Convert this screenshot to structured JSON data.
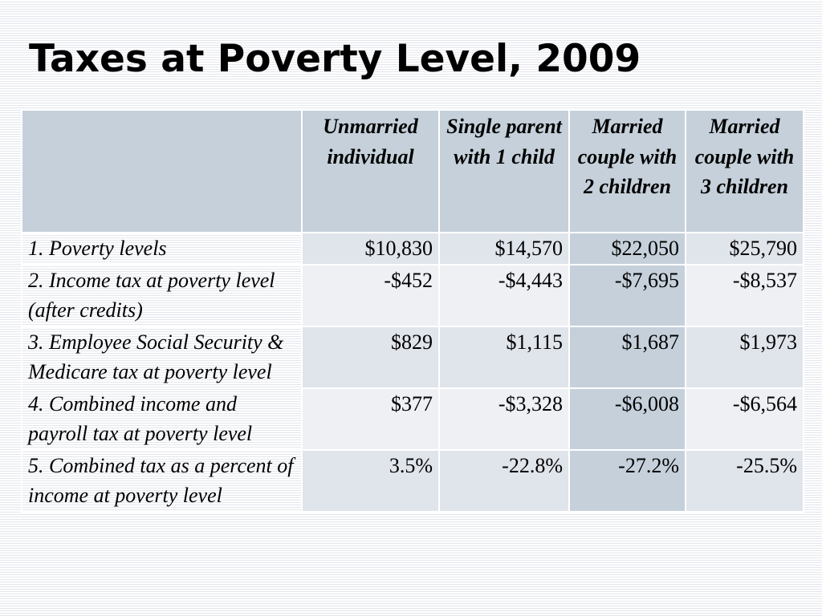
{
  "slide": {
    "title": "Taxes at Poverty Level, 2009"
  },
  "table": {
    "headers": [
      "",
      "Unmarried individual",
      "Single parent with 1 child",
      "Married couple with 2 children",
      "Married couple with 3 children"
    ],
    "rows": [
      {
        "label": "1.  Poverty levels",
        "values": [
          "$10,830",
          "$14,570",
          "$22,050",
          "$25,790"
        ]
      },
      {
        "label": "2.  Income tax at poverty level (after credits)",
        "values": [
          "-$452",
          "-$4,443",
          "-$7,695",
          "-$8,537"
        ]
      },
      {
        "label": "3.  Employee Social Security & Medicare tax at poverty level",
        "values": [
          "$829",
          "$1,115",
          "$1,687",
          "$1,973"
        ]
      },
      {
        "label": "4.  Combined income and payroll tax at poverty level",
        "values": [
          "$377",
          "-$3,328",
          "-$6,008",
          "-$6,564"
        ]
      },
      {
        "label": "5.  Combined tax as a percent of income at poverty level",
        "values": [
          "3.5%",
          "-22.8%",
          "-27.2%",
          "-25.5%"
        ]
      }
    ]
  },
  "colors": {
    "header_bg": "#c5d0da",
    "row_odd_bg": "#e0e4eb",
    "row_even_bg": "#eef0f4",
    "highlight_column_bg": "#c5d0da"
  }
}
